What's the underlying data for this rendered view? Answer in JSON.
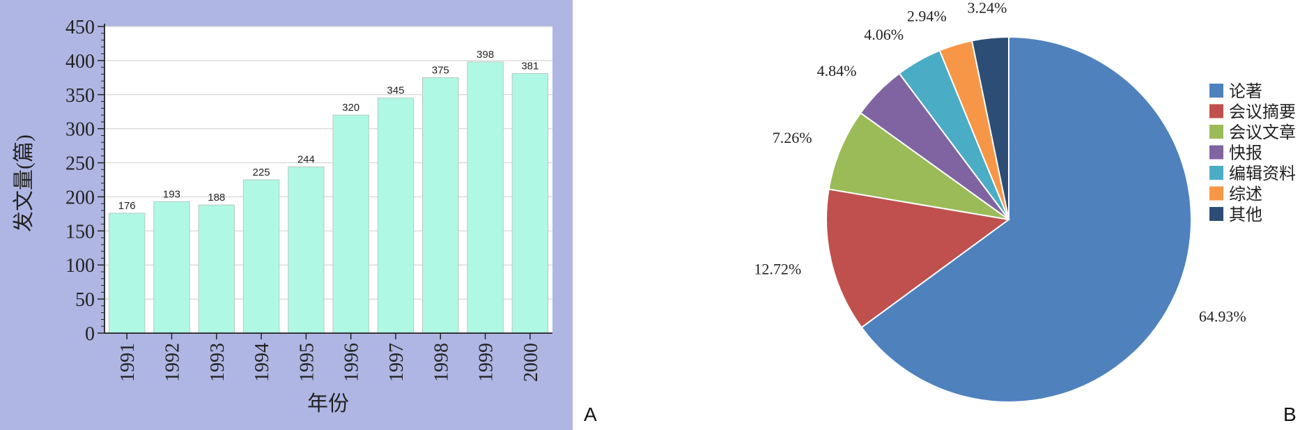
{
  "chart_data": [
    {
      "type": "bar",
      "panel_label": "A",
      "xlabel": "年份",
      "ylabel": "发文量(篇)",
      "categories": [
        "1991",
        "1992",
        "1993",
        "1994",
        "1995",
        "1996",
        "1997",
        "1998",
        "1999",
        "2000"
      ],
      "values": [
        176,
        193,
        188,
        225,
        244,
        320,
        345,
        375,
        398,
        381
      ],
      "ylim": [
        0,
        450
      ],
      "yticks": [
        "0",
        "50",
        "100",
        "150",
        "200",
        "250",
        "300",
        "350",
        "400",
        "450"
      ],
      "grid": true,
      "colors": {
        "bar": "#aff8e4",
        "panel_bg": "#afb6e3",
        "plot_bg": "#ffffff"
      }
    },
    {
      "type": "pie",
      "panel_label": "B",
      "legend_position": "right",
      "slices": [
        {
          "label": "论著",
          "value": 64.93,
          "display": "64.93%",
          "color": "#4f81bd"
        },
        {
          "label": "会议摘要",
          "value": 12.72,
          "display": "12.72%",
          "color": "#c0504d"
        },
        {
          "label": "会议文章",
          "value": 7.26,
          "display": "7.26%",
          "color": "#9bbb59"
        },
        {
          "label": "快报",
          "value": 4.84,
          "display": "4.84%",
          "color": "#8064a2"
        },
        {
          "label": "编辑资料",
          "value": 4.06,
          "display": "4.06%",
          "color": "#4bacc6"
        },
        {
          "label": "综述",
          "value": 2.94,
          "display": "2.94%",
          "color": "#f79646"
        },
        {
          "label": "其他",
          "value": 3.24,
          "display": "3.24%",
          "color": "#2c4d75"
        }
      ]
    }
  ]
}
